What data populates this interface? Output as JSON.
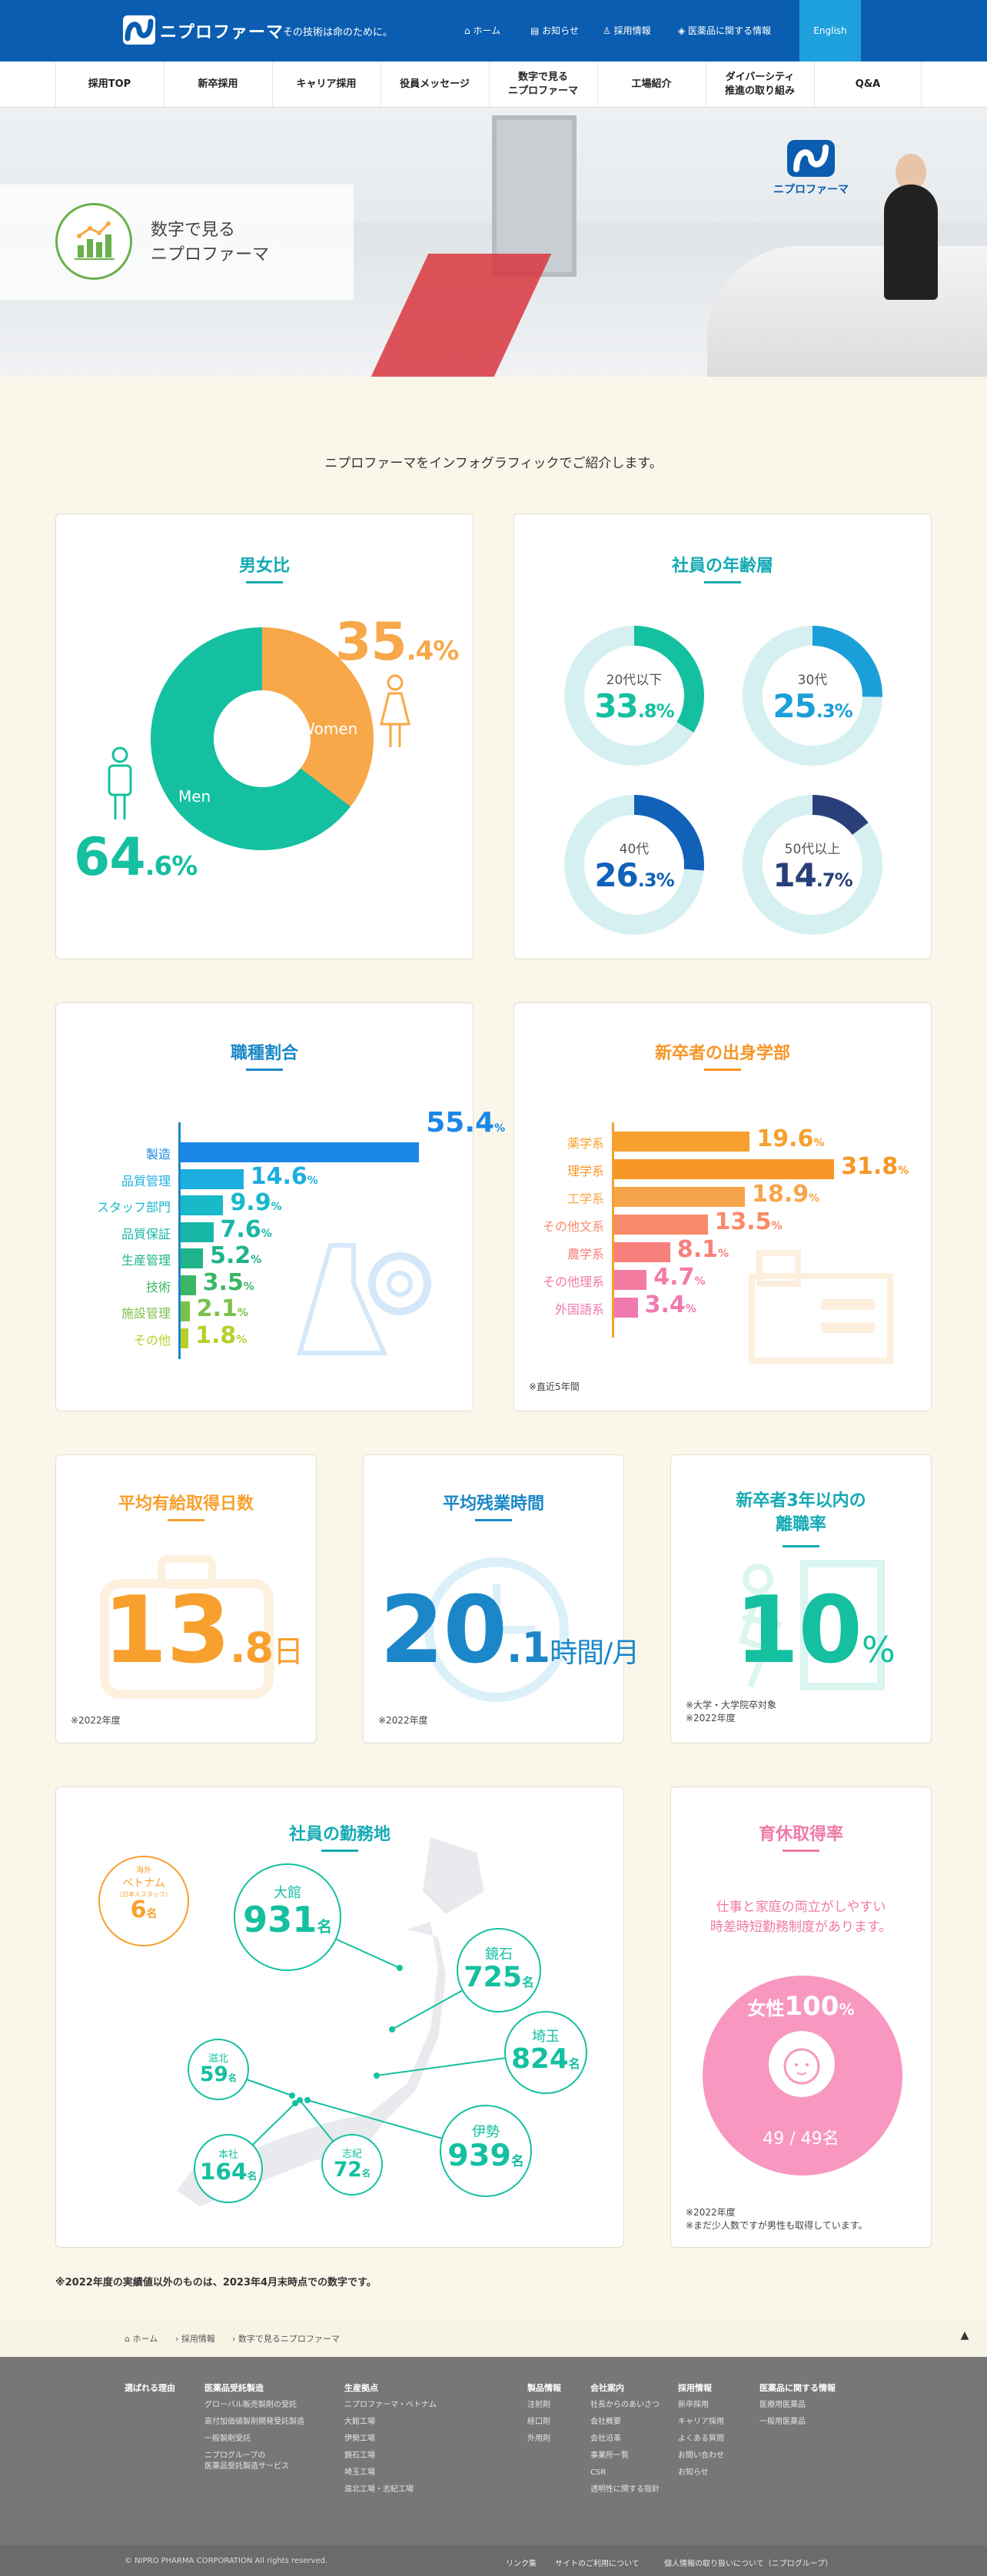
{
  "header": {
    "logo": "ニプロファーマ",
    "tagline": "その技術は命のために。",
    "nav": [
      {
        "icon": "home-icon",
        "label": "ホーム"
      },
      {
        "icon": "news-icon",
        "label": "お知らせ"
      },
      {
        "icon": "person-icon",
        "label": "採用情報"
      },
      {
        "icon": "pill-icon",
        "label": "医薬品に関する情報"
      }
    ],
    "english": "English"
  },
  "menu": [
    "採用TOP",
    "新卒採用",
    "キャリア採用",
    "役員メッセージ",
    "数字で見る\nニプロファーマ",
    "工場紹介",
    "ダイバーシティ\n推進の取り組み",
    "Q&A"
  ],
  "hero": {
    "title": "数字で見る\nニプロファーマ",
    "sign": "ニプロファーマ"
  },
  "intro": "ニプロファーマをインフォグラフィックでご紹介します。",
  "gender": {
    "title": "男女比",
    "men_label": "Men",
    "women_label": "Women",
    "men": {
      "int": "64",
      "dec": ".6%"
    },
    "women": {
      "int": "35",
      "dec": ".4%"
    },
    "colors": {
      "men": "#14c0a0",
      "women": "#f8a848"
    }
  },
  "age": {
    "title": "社員の年齢層",
    "groups": [
      {
        "label": "20代以下",
        "int": "33",
        "dec": ".8%",
        "value": 33.8,
        "color": "#14c0a0"
      },
      {
        "label": "30代",
        "int": "25",
        "dec": ".3%",
        "value": 25.3,
        "color": "#1b9fd8"
      },
      {
        "label": "40代",
        "int": "26",
        "dec": ".3%",
        "value": 26.3,
        "color": "#1261b8"
      },
      {
        "label": "50代以上",
        "int": "14",
        "dec": ".7%",
        "value": 14.7,
        "color": "#2a3f7a"
      }
    ]
  },
  "job": {
    "title": "職種割合",
    "items": [
      {
        "label": "製造",
        "int": "55.4",
        "value": 55.4,
        "color": "#1b87e6"
      },
      {
        "label": "品質管理",
        "int": "14.6",
        "value": 14.6,
        "color": "#1caee0"
      },
      {
        "label": "スタッフ部門",
        "int": "9.9",
        "value": 9.9,
        "color": "#18b9c9"
      },
      {
        "label": "品質保証",
        "int": "7.6",
        "value": 7.6,
        "color": "#19b7a8"
      },
      {
        "label": "生産管理",
        "int": "5.2",
        "value": 5.2,
        "color": "#1fb38a"
      },
      {
        "label": "技術",
        "int": "3.5",
        "value": 3.5,
        "color": "#3cb664"
      },
      {
        "label": "施設管理",
        "int": "2.1",
        "value": 2.1,
        "color": "#7cc04a"
      },
      {
        "label": "その他",
        "int": "1.8",
        "value": 1.8,
        "color": "#b8cf2a"
      }
    ],
    "unit": "%"
  },
  "faculty": {
    "title": "新卒者の出身学部",
    "items": [
      {
        "label": "薬学系",
        "int": "19.6",
        "value": 19.6,
        "color": "#f7a02e"
      },
      {
        "label": "理学系",
        "int": "31.8",
        "value": 31.8,
        "color": "#f79626"
      },
      {
        "label": "工学系",
        "int": "18.9",
        "value": 18.9,
        "color": "#f7a54a"
      },
      {
        "label": "その他文系",
        "int": "13.5",
        "value": 13.5,
        "color": "#f98a6a"
      },
      {
        "label": "農学系",
        "int": "8.1",
        "value": 8.1,
        "color": "#f8807c"
      },
      {
        "label": "その他理系",
        "int": "4.7",
        "value": 4.7,
        "color": "#f47ca0"
      },
      {
        "label": "外国語系",
        "int": "3.4",
        "value": 3.4,
        "color": "#f079b0"
      }
    ],
    "unit": "%",
    "note": "※直近5年間"
  },
  "leave": {
    "title": "平均有給取得日数",
    "int": "13",
    "dec": ".8",
    "unit": "日",
    "note": "※2022年度"
  },
  "overtime": {
    "title": "平均残業時間",
    "int": "20",
    "dec": ".1",
    "unit": "時間/月",
    "note": "※2022年度"
  },
  "turnover": {
    "title": "新卒者3年以内の\n離職率",
    "int": "10",
    "unit": "%",
    "note": "※大学・大学院卒対象\n※2022年度"
  },
  "locations": {
    "title": "社員の勤務地",
    "overseas": {
      "tag": "海外",
      "name": "ベトナム",
      "sub": "（日本人スタッフ）",
      "num": "6",
      "unit": "名"
    },
    "sites": [
      {
        "name": "大館",
        "num": "931"
      },
      {
        "name": "鏡石",
        "num": "725"
      },
      {
        "name": "埼玉",
        "num": "824"
      },
      {
        "name": "伊勢",
        "num": "939"
      },
      {
        "name": "滋北",
        "num": "59"
      },
      {
        "name": "本社",
        "num": "164"
      },
      {
        "name": "志紀",
        "num": "72"
      }
    ],
    "unit": "名"
  },
  "childcare": {
    "title": "育休取得率",
    "text": "仕事と家庭の両立がしやすい\n時差時短勤務制度があります。",
    "label": "女性",
    "int": "100",
    "unit": "%",
    "ratio": "49 / 49名",
    "note": "※2022年度\n※まだ少人数ですが男性も取得しています。"
  },
  "footnote": "※2022年度の実績値以外のものは、2023年4月末時点での数字です。",
  "breadcrumb": [
    "ホーム",
    "採用情報",
    "数字で見るニプロファーマ"
  ],
  "footer": {
    "cols": [
      {
        "head": "選ばれる理由",
        "items": []
      },
      {
        "head": "医薬品受託製造",
        "items": [
          "グローバル販売製剤の受託",
          "高付加価値製剤開発受託製造",
          "一般製剤受託",
          "ニプログループの\n医薬品受託製造サービス"
        ]
      },
      {
        "head": "生産拠点",
        "items": [
          "ニプロファーマ・ベトナム",
          "大館工場",
          "伊勢工場",
          "鏡石工場",
          "埼玉工場",
          "滋北工場・志紀工場"
        ]
      },
      {
        "head": "製品情報",
        "items": [
          "注射剤",
          "経口剤",
          "外用剤"
        ]
      },
      {
        "head": "会社案内",
        "items": [
          "社長からのあいさつ",
          "会社概要",
          "会社沿革",
          "事業所一覧",
          "CSR",
          "透明性に関する指針"
        ]
      },
      {
        "head": "採用情報",
        "items": [
          "新卒採用",
          "キャリア採用",
          "よくある質問",
          "お問い合わせ",
          "お知らせ"
        ]
      },
      {
        "head": "医薬品に関する情報",
        "items": [
          "医療用医薬品",
          "一般用医薬品"
        ]
      }
    ],
    "copyright": "© NIPRO PHARMA CORPORATION All rights reserved.",
    "links": [
      "リンク集",
      "サイトのご利用について",
      "個人情報の取り扱いについて（ニプログループ）"
    ]
  }
}
